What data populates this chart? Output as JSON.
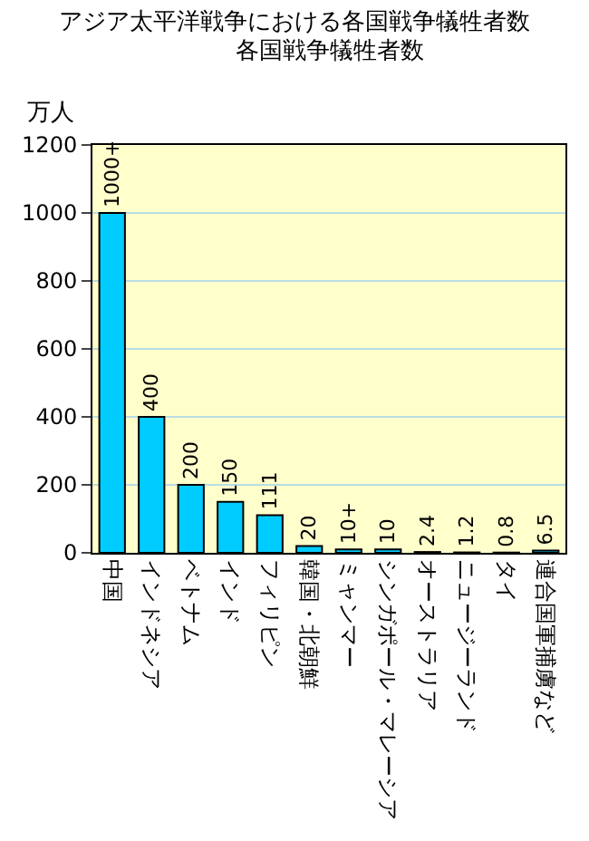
{
  "chart_data": {
    "type": "bar",
    "title": "アジア太平洋戦争における各国戦争犠牲者数",
    "subtitle": "各国戦争犠牲者数",
    "ylabel": "万人",
    "categories": [
      "中国",
      "インドネシア",
      "ベトナム",
      "インド",
      "フィリピン",
      "韓国・北朝鮮",
      "ミャンマー",
      "シンガポール・マレーシア",
      "オーストラリア",
      "ニュージーランド",
      "タイ",
      "連合国軍捕虜など"
    ],
    "values": [
      1000,
      400,
      200,
      150,
      111,
      20,
      10,
      10,
      2.4,
      1.2,
      0.8,
      6.5
    ],
    "value_labels": [
      "1000+",
      "400",
      "200",
      "150",
      "111",
      "20",
      "10+",
      "10",
      "2.4",
      "1.2",
      "0.8",
      "6.5"
    ],
    "color": "#00ccff",
    "ylim": [
      0,
      1200
    ],
    "yticks": [
      0,
      200,
      400,
      600,
      800,
      1000,
      1200
    ],
    "grid": "y"
  }
}
